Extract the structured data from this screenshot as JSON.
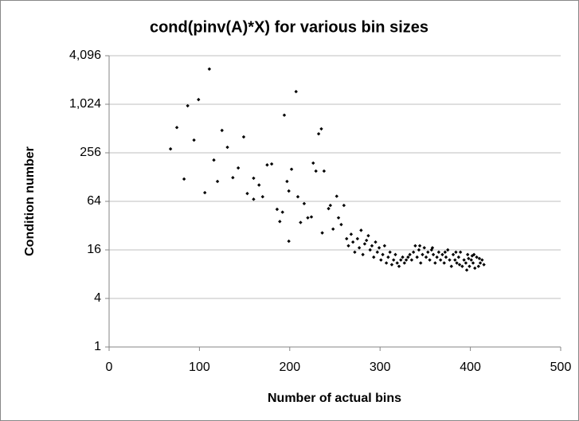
{
  "chart_data": {
    "type": "scatter",
    "title": "cond(pinv(A)*X) for various bin sizes",
    "x_label": "Number of actual bins",
    "y_label": "Condition number",
    "color": "#000000",
    "grid": true,
    "yscale": "log",
    "xlim": [
      0,
      500
    ],
    "xticks": [
      0,
      100,
      200,
      300,
      400,
      500
    ],
    "ylim": [
      1,
      4096
    ],
    "yticks": [
      1,
      4,
      16,
      64,
      256,
      {
        "value": 1024,
        "label": "1,024"
      },
      {
        "value": 4096,
        "label": "4,096"
      }
    ],
    "x": [
      68,
      75,
      83,
      87,
      94,
      99,
      106,
      111,
      116,
      120,
      125,
      131,
      137,
      143,
      149,
      153,
      160,
      160,
      166,
      170,
      175,
      180,
      186,
      189,
      192,
      194,
      197,
      199,
      199,
      202,
      207,
      209,
      212,
      216,
      220,
      224,
      226,
      229,
      232,
      235,
      236,
      238,
      243,
      245,
      248,
      252,
      254,
      257,
      260,
      263,
      265,
      268,
      270,
      272,
      275,
      277,
      279,
      281,
      283,
      285,
      287,
      289,
      291,
      293,
      295,
      297,
      299,
      301,
      303,
      305,
      307,
      309,
      311,
      313,
      315,
      317,
      319,
      321,
      323,
      325,
      327,
      329,
      331,
      333,
      335,
      337,
      339,
      341,
      343,
      345,
      347,
      349,
      351,
      353,
      355,
      357,
      359,
      361,
      363,
      365,
      367,
      369,
      371,
      373,
      375,
      377,
      379,
      381,
      383,
      385,
      387,
      389,
      391,
      393,
      395,
      397,
      399,
      401,
      403,
      405,
      407,
      409,
      411,
      413,
      415,
      396,
      402,
      388,
      372,
      358,
      344,
      384,
      404,
      410,
      398
    ],
    "values": [
      286,
      527,
      121,
      980,
      368,
      1170,
      82,
      2800,
      208,
      113,
      485,
      300,
      126,
      166,
      403,
      80,
      124,
      68,
      102,
      73,
      181,
      186,
      51,
      36,
      47,
      750,
      113,
      86,
      20.5,
      160,
      1470,
      73,
      35,
      60,
      40,
      41,
      191,
      152,
      440,
      507,
      26,
      152,
      52,
      57,
      29,
      74,
      40,
      33,
      57,
      22,
      18,
      25,
      20,
      15,
      22,
      17,
      28,
      14,
      19,
      21,
      24,
      16,
      18,
      13,
      20,
      15,
      17,
      12,
      14,
      18,
      11,
      13,
      15,
      10.5,
      12,
      14,
      11,
      10,
      12,
      13,
      11,
      12,
      13,
      14,
      12,
      15,
      18,
      13,
      16,
      11,
      14,
      17,
      13,
      15,
      12,
      16,
      14,
      11,
      13,
      15,
      12,
      14,
      11,
      13,
      16,
      12,
      10,
      14,
      12,
      11,
      13,
      15,
      10,
      12,
      11,
      14,
      10,
      12,
      11,
      9.5,
      13,
      10,
      11,
      12,
      10.5,
      9,
      13.5,
      10.5,
      15,
      17,
      18,
      15,
      14,
      12.5,
      12.5
    ]
  }
}
